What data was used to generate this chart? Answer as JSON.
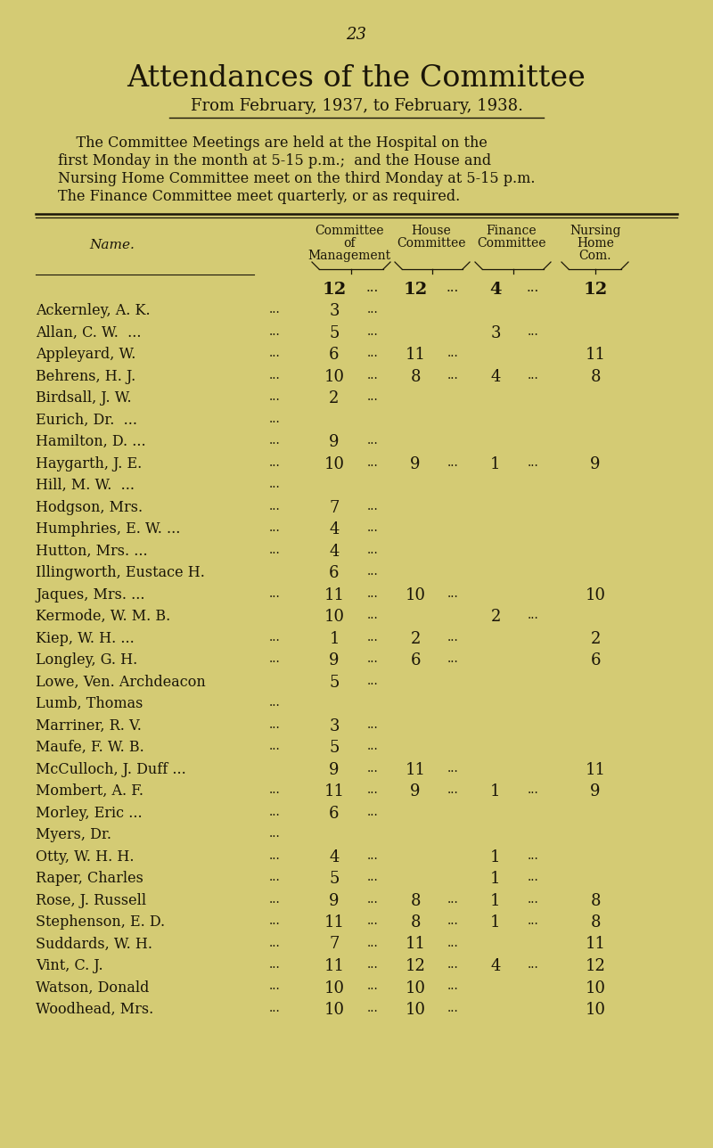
{
  "page_number": "23",
  "title": "Attendances of the Committee",
  "subtitle": "From February, 1937, to February, 1938.",
  "description_lines": [
    "    The Committee Meetings are held at the Hospital on the",
    "first Monday in the month at 5-15 p.m.;  and the House and",
    "Nursing Home Committee meet on the third Monday at 5-15 p.m.",
    "The Finance Committee meet quarterly, or as required."
  ],
  "bg_color": "#d4cb74",
  "text_color": "#1a1508",
  "col_headers": [
    [
      "Committee",
      "of",
      "Management"
    ],
    [
      "House",
      "Committee"
    ],
    [
      "Finance",
      "Committee"
    ],
    [
      "Nursing",
      "Home",
      "Com."
    ]
  ],
  "col_totals": [
    "12",
    "12",
    "4",
    "12"
  ],
  "rows": [
    [
      "Ackernley, A. K.",
      "...",
      "3",
      "...",
      "",
      "",
      "",
      "",
      ""
    ],
    [
      "Allan, C. W.  ...",
      "...",
      "5",
      "...",
      "",
      "",
      "3",
      "...",
      ""
    ],
    [
      "Appleyard, W.",
      "...",
      "6",
      "...",
      "11",
      "...",
      "",
      "",
      "11"
    ],
    [
      "Behrens, H. J.",
      "...",
      "10",
      "...",
      "8",
      "...",
      "4",
      "...",
      "8"
    ],
    [
      "Birdsall, J. W.",
      "...",
      "2",
      "...",
      "",
      "",
      "",
      "",
      ""
    ],
    [
      "Eurich, Dr.  ...",
      "...",
      "",
      "",
      "",
      "",
      "",
      "",
      ""
    ],
    [
      "Hamilton, D. ...",
      "...",
      "9",
      "...",
      "",
      "",
      "",
      "",
      ""
    ],
    [
      "Haygarth, J. E.",
      "...",
      "10",
      "...",
      "9",
      "...",
      "1",
      "...",
      "9"
    ],
    [
      "Hill, M. W.  ...",
      "...",
      "",
      "",
      "",
      "",
      "",
      "",
      ""
    ],
    [
      "Hodgson, Mrs.",
      "...",
      "7",
      "...",
      "",
      "",
      "",
      "",
      ""
    ],
    [
      "Humphries, E. W. ...",
      "...",
      "4",
      "...",
      "",
      "",
      "",
      "",
      ""
    ],
    [
      "Hutton, Mrs. ...",
      "...",
      "4",
      "...",
      "",
      "",
      "",
      "",
      ""
    ],
    [
      "Illingworth, Eustace H.",
      "",
      "6",
      "...",
      "",
      "",
      "",
      "",
      ""
    ],
    [
      "Jaques, Mrs. ...",
      "...",
      "11",
      "...",
      "10",
      "...",
      "",
      "",
      "10"
    ],
    [
      "Kermode, W. M. B.",
      "",
      "10",
      "...",
      "",
      "",
      "2",
      "...",
      ""
    ],
    [
      "Kiep, W. H. ...",
      "...",
      "1",
      "...",
      "2",
      "...",
      "",
      "",
      "2"
    ],
    [
      "Longley, G. H.",
      "...",
      "9",
      "...",
      "6",
      "...",
      "",
      "",
      "6"
    ],
    [
      "Lowe, Ven. Archdeacon",
      "",
      "5",
      "...",
      "",
      "",
      "",
      "",
      ""
    ],
    [
      "Lumb, Thomas",
      "...",
      "",
      "",
      "",
      "",
      "",
      "",
      ""
    ],
    [
      "Marriner, R. V.",
      "...",
      "3",
      "...",
      "",
      "",
      "",
      "",
      ""
    ],
    [
      "Maufe, F. W. B.",
      "...",
      "5",
      "...",
      "",
      "",
      "",
      "",
      ""
    ],
    [
      "McCulloch, J. Duff ...",
      "",
      "9",
      "...",
      "11",
      "...",
      "",
      "",
      "11"
    ],
    [
      "Mombert, A. F.",
      "...",
      "11",
      "...",
      "9",
      "...",
      "1",
      "...",
      "9"
    ],
    [
      "Morley, Eric ...",
      "...",
      "6",
      "...",
      "",
      "",
      "",
      "",
      ""
    ],
    [
      "Myers, Dr.",
      "...",
      "",
      "",
      "",
      "",
      "",
      "",
      ""
    ],
    [
      "Otty, W. H. H.",
      "...",
      "4",
      "...",
      "",
      "",
      "1",
      "...",
      ""
    ],
    [
      "Raper, Charles",
      "...",
      "5",
      "...",
      "",
      "",
      "1",
      "...",
      ""
    ],
    [
      "Rose, J. Russell",
      "...",
      "9",
      "...",
      "8",
      "...",
      "1",
      "...",
      "8"
    ],
    [
      "Stephenson, E. D.",
      "...",
      "11",
      "...",
      "8",
      "...",
      "1",
      "...",
      "8"
    ],
    [
      "Suddards, W. H.",
      "...",
      "7",
      "...",
      "11",
      "...",
      "",
      "",
      "11"
    ],
    [
      "Vint, C. J.",
      "...",
      "11",
      "...",
      "12",
      "...",
      "4",
      "...",
      "12"
    ],
    [
      "Watson, Donald",
      "...",
      "10",
      "...",
      "10",
      "...",
      "",
      "",
      "10"
    ],
    [
      "Woodhead, Mrs.",
      "...",
      "10",
      "...",
      "10",
      "...",
      "",
      "",
      "10"
    ]
  ]
}
